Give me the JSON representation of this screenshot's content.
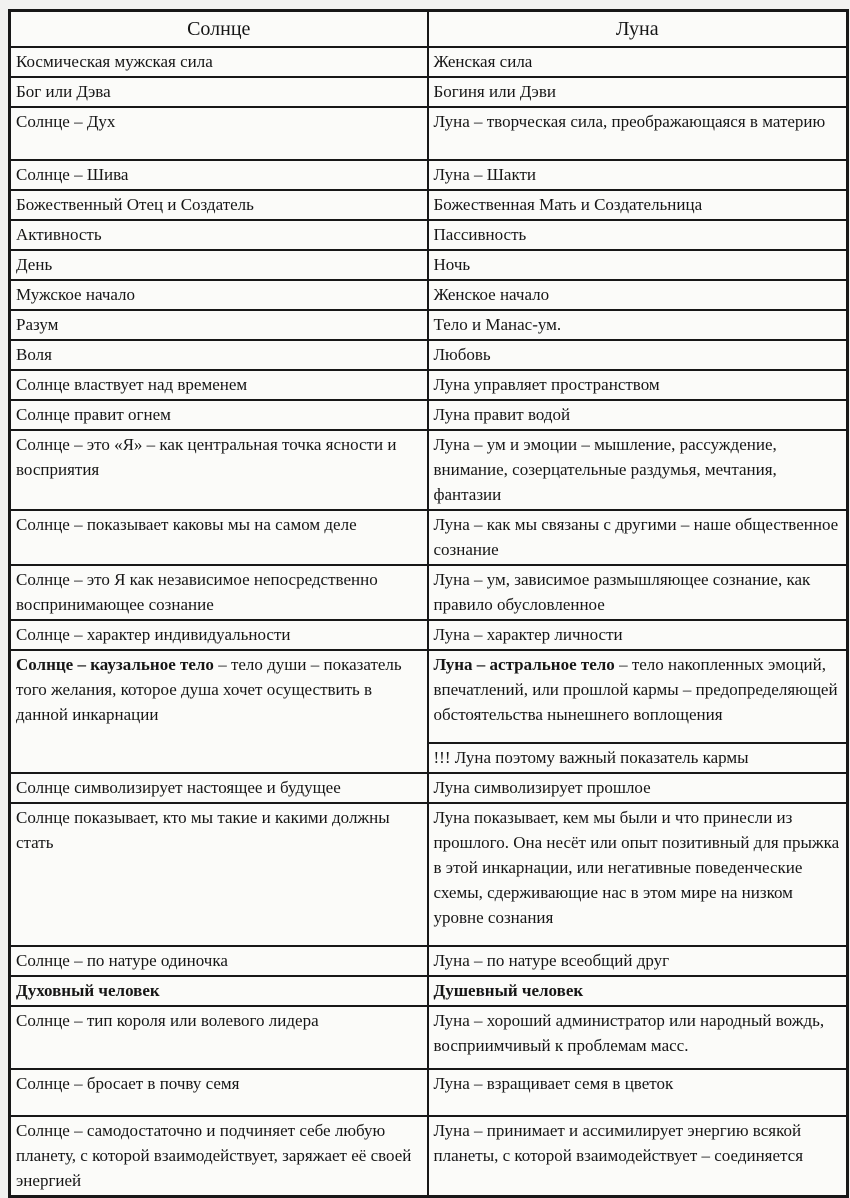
{
  "table": {
    "headers": {
      "sun": "Солнце",
      "moon": "Луна"
    },
    "rows": [
      {
        "left": "Космическая мужская сила",
        "right": "Женская сила"
      },
      {
        "left": "Бог или Дэва",
        "right": "Богиня или Дэви"
      },
      {
        "left": "Солнце – Дух",
        "right": "Луна – творческая сила, преображающаяся в материю"
      },
      {
        "left": "Солнце – Шива",
        "right": "Луна – Шакти"
      },
      {
        "left": "Божественный Отец и Создатель",
        "right": "Божественная Мать и Создательница"
      },
      {
        "left": "Активность",
        "right": "Пассивность"
      },
      {
        "left": "День",
        "right": "Ночь"
      },
      {
        "left": "Мужское начало",
        "right": "Женское начало"
      },
      {
        "left": "Разум",
        "right": "Тело и Манас-ум."
      },
      {
        "left": "Воля",
        "right": "Любовь"
      },
      {
        "left": "Солнце властвует над временем",
        "right": "Луна управляет пространством"
      },
      {
        "left": "Солнце правит огнем",
        "right": "Луна правит водой"
      },
      {
        "left": "Солнце – это «Я» – как центральная точка ясности и восприятия",
        "right": "Луна – ум и эмоции – мышление, рассуждение, внимание, созерцательные раздумья, мечтания, фантазии"
      },
      {
        "left": "Солнце – показывает каковы мы на самом деле",
        "right": "Луна – как мы связаны с другими – наше общественное сознание"
      },
      {
        "left": "Солнце – это Я как независимое непосредственно воспринимающее сознание",
        "right": "Луна – ум, зависимое размышляющее сознание, как правило обусловленное"
      },
      {
        "left": "Солнце – характер индивидуальности",
        "right": "Луна – характер личности"
      },
      {
        "left_bold": "Солнце – каузальное тело",
        "left": " – тело души – показатель того желания, которое душа хочет осуществить в данной инкарнации",
        "right_bold": "Луна – астральное тело",
        "right": " – тело накопленных эмоций, впечатлений, или прошлой кармы – предопределяющей обстоятельства нынешнего воплощения",
        "right_sub": "!!! Луна поэтому важный показатель кармы"
      },
      {
        "left": "Солнце символизирует настоящее и будущее",
        "right": "Луна символизирует прошлое"
      },
      {
        "left": "Солнце показывает, кто мы такие и какими должны стать",
        "right": "Луна показывает, кем мы были и что принесли из прошлого. Она несёт или опыт позитивный для прыжка в этой инкарнации, или негативные поведенческие схемы, сдерживающие нас в этом мире на низком уровне сознания"
      },
      {
        "left": "Солнце – по натуре одиночка",
        "right": "Луна – по натуре всеобщий друг"
      },
      {
        "left_bold": "Духовный человек",
        "right_bold": "Душевный человек"
      },
      {
        "left": "Солнце – тип короля или волевого лидера",
        "right": "Луна – хороший администратор или народный вождь, восприимчивый к проблемам масс."
      },
      {
        "left": "Солнце – бросает в почву семя",
        "right": "Луна – взращивает семя в цветок"
      },
      {
        "left": "Солнце – самодостаточно и подчиняет себе любую планету, с которой взаимодействует, заряжает её своей энергией",
        "right": "Луна – принимает и ассимилирует энергию всякой планеты, с которой взаимодействует – соединяется"
      }
    ]
  }
}
